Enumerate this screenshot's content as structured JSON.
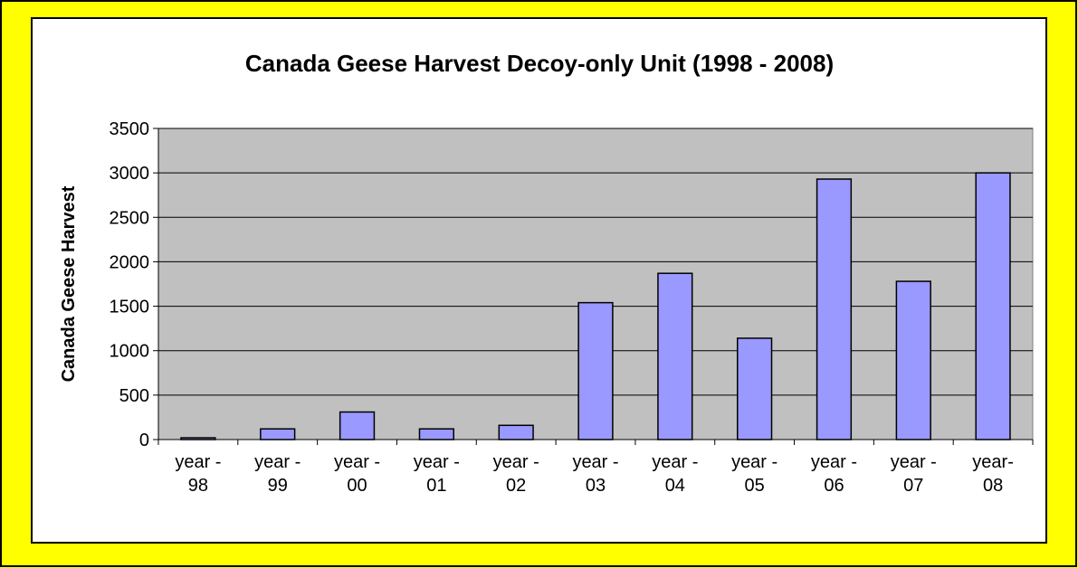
{
  "chart_data": {
    "type": "bar",
    "title": "Canada Geese Harvest Decoy-only Unit (1998 - 2008)",
    "y_label": "Canada Geese Harvest",
    "categories": [
      "year - 98",
      "year - 99",
      "year - 00",
      "year - 01",
      "year - 02",
      "year - 03",
      "year - 04",
      "year - 05",
      "year - 06",
      "year - 07",
      "year- 08"
    ],
    "values": [
      20,
      120,
      310,
      120,
      160,
      1540,
      1870,
      1140,
      2930,
      1780,
      3000
    ],
    "color": "#9999ff",
    "ylim": [
      0,
      3500
    ],
    "yticks": [
      0,
      500,
      1000,
      1500,
      2000,
      2500,
      3000,
      3500
    ],
    "grid": true
  }
}
